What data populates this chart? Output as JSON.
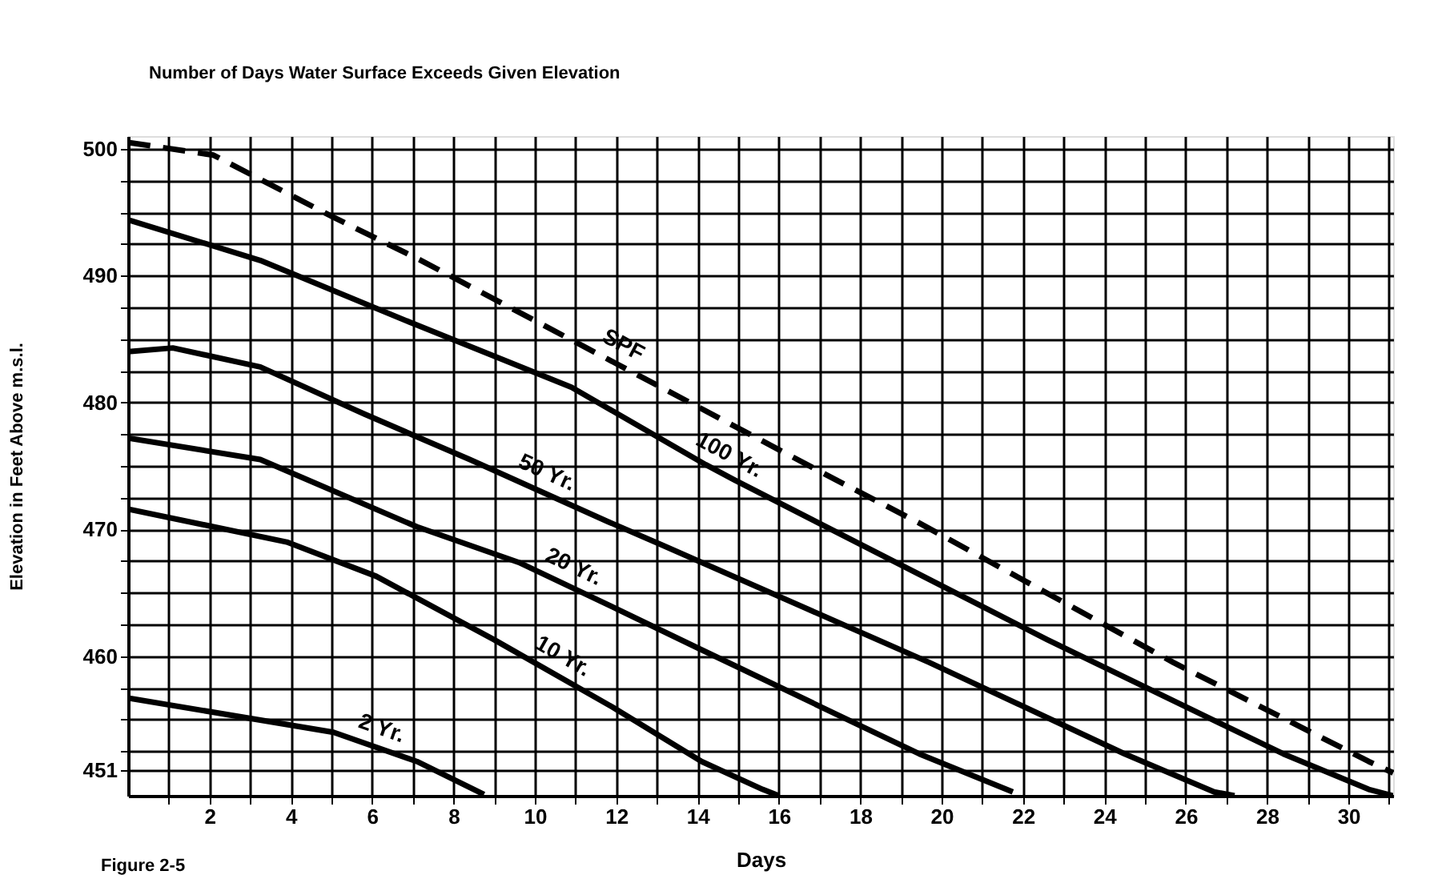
{
  "chart_data": {
    "type": "line",
    "title": "Number of Days Water Surface Exceeds Given Elevation",
    "xlabel": "Days",
    "ylabel": "Elevation in Feet Above m.s.l.",
    "annotations": [
      "Figure 2-5"
    ],
    "xlim": [
      0,
      31.1
    ],
    "ylim": [
      449,
      501
    ],
    "xticks": [
      {
        "value": 1,
        "label": null
      },
      2,
      {
        "value": 3,
        "label": null
      },
      4,
      {
        "value": 5,
        "label": null
      },
      6,
      {
        "value": 7,
        "label": null
      },
      8,
      {
        "value": 9,
        "label": null
      },
      10,
      {
        "value": 11,
        "label": null
      },
      12,
      {
        "value": 13,
        "label": null
      },
      14,
      {
        "value": 15,
        "label": null
      },
      16,
      {
        "value": 17,
        "label": null
      },
      18,
      {
        "value": 19,
        "label": null
      },
      20,
      {
        "value": 21,
        "label": null
      },
      22,
      {
        "value": 23,
        "label": null
      },
      24,
      {
        "value": 25,
        "label": null
      },
      26,
      {
        "value": 27,
        "label": null
      },
      28,
      {
        "value": 29,
        "label": null
      },
      30,
      {
        "value": 31,
        "label": null
      }
    ],
    "yticks": [
      451,
      {
        "value": 452.5,
        "label": null
      },
      {
        "value": 455,
        "label": null
      },
      {
        "value": 457.5,
        "label": null
      },
      460,
      {
        "value": 462.5,
        "label": null
      },
      {
        "value": 465,
        "label": null
      },
      {
        "value": 467.5,
        "label": null
      },
      470,
      {
        "value": 472.5,
        "label": null
      },
      {
        "value": 475,
        "label": null
      },
      {
        "value": 477.5,
        "label": null
      },
      480,
      {
        "value": 482.5,
        "label": null
      },
      {
        "value": 485,
        "label": null
      },
      {
        "value": 487.5,
        "label": null
      },
      490,
      {
        "value": 492.5,
        "label": null
      },
      {
        "value": 495,
        "label": null
      },
      {
        "value": 497.5,
        "label": null
      },
      500
    ],
    "grid": true,
    "marker": "none",
    "series": [
      {
        "name": "SPF",
        "color": "#000000",
        "line_style": "dashed",
        "x": [
          0,
          2.1,
          5.05,
          7.2,
          10.8,
          13.1,
          17.4,
          19.45,
          25.7,
          30.5,
          31.1
        ],
        "values": [
          500.5,
          499.5,
          494.6,
          491.2,
          485.1,
          481.2,
          473.9,
          470.5,
          459.5,
          451.7,
          450.8
        ]
      },
      {
        "name": "100 Yr.",
        "color": "#000000",
        "line_style": "solid",
        "x": [
          0,
          3.25,
          7.1,
          10.9,
          14.2,
          14.9,
          22.6,
          28.4,
          30.5,
          31.1
        ],
        "values": [
          494.4,
          491.2,
          486.1,
          481.2,
          475.1,
          473.9,
          461.3,
          452.3,
          449.5,
          449
        ]
      },
      {
        "name": "50 Yr.",
        "color": "#000000",
        "line_style": "solid",
        "x": [
          0,
          1.1,
          3.25,
          5.8,
          8.4,
          11.8,
          13.1,
          19.7,
          24.5,
          26.7,
          27.2
        ],
        "values": [
          484.0,
          484.3,
          482.8,
          479.1,
          475.5,
          470.6,
          468.8,
          459.5,
          452.3,
          449.3,
          449
        ]
      },
      {
        "name": "20 Yr.",
        "color": "#000000",
        "line_style": "solid",
        "x": [
          0,
          3.25,
          7.1,
          9.6,
          11.9,
          14.1,
          19.45,
          21.75
        ],
        "values": [
          477.2,
          475.5,
          470.2,
          467.4,
          463.9,
          460.5,
          452.3,
          449.3
        ]
      },
      {
        "name": "10 Yr.",
        "color": "#000000",
        "line_style": "solid",
        "x": [
          0,
          3.9,
          6.1,
          9.0,
          11.9,
          14.1,
          15.6,
          16.0
        ],
        "values": [
          471.6,
          469.0,
          466.3,
          461.3,
          456.0,
          451.7,
          449.5,
          449
        ]
      },
      {
        "name": "2 Yr.",
        "color": "#000000",
        "line_style": "solid",
        "x": [
          0,
          5.05,
          7.1,
          8.75
        ],
        "values": [
          456.7,
          454.0,
          451.7,
          449.1
        ]
      }
    ]
  }
}
